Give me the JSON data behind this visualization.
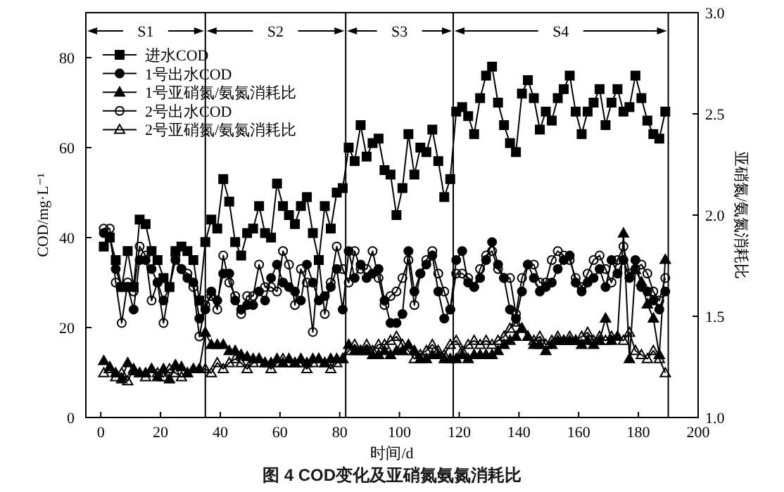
{
  "chart_data": {
    "type": "line",
    "title": "图 4 COD变化及亚硝氮氨氮消耗比",
    "xlabel": "时间/d",
    "ylabel": "COD/mg·L⁻¹",
    "y2label": "亚硝氮/氨氮消耗比",
    "xlim": [
      -5,
      200
    ],
    "xticks": [
      0,
      20,
      40,
      60,
      80,
      100,
      120,
      140,
      160,
      180,
      200
    ],
    "ylim": [
      0,
      90
    ],
    "yticks": [
      0,
      20,
      40,
      60,
      80
    ],
    "y2lim": [
      1.0,
      3.0
    ],
    "y2ticks": [
      {
        "value": 1.0,
        "label": "1.0"
      },
      1.5,
      {
        "value": 2.0,
        "label": "2.0"
      },
      2.5,
      {
        "value": 3.0,
        "label": "3.0"
      }
    ],
    "legend": "top left",
    "grid": false,
    "line_style": "solid",
    "x": [
      1,
      3,
      5,
      7,
      9,
      11,
      13,
      15,
      17,
      19,
      21,
      23,
      25,
      27,
      29,
      31,
      33,
      35,
      37,
      39,
      41,
      43,
      45,
      47,
      49,
      51,
      53,
      55,
      57,
      59,
      61,
      63,
      65,
      67,
      69,
      71,
      73,
      75,
      77,
      79,
      81,
      83,
      85,
      87,
      89,
      91,
      93,
      95,
      97,
      99,
      101,
      103,
      105,
      107,
      109,
      111,
      113,
      115,
      117,
      119,
      121,
      123,
      125,
      127,
      129,
      131,
      133,
      135,
      137,
      139,
      141,
      143,
      145,
      147,
      149,
      151,
      153,
      155,
      157,
      159,
      161,
      163,
      165,
      167,
      169,
      171,
      173,
      175,
      177,
      179,
      181,
      183,
      185,
      187,
      189
    ],
    "ref_lines": [
      {
        "axis": "x",
        "value": 35
      },
      {
        "axis": "x",
        "value": 82
      },
      {
        "axis": "x",
        "value": 118
      },
      {
        "axis": "x",
        "value": 190
      }
    ],
    "annotations": [
      "S1",
      "S2",
      "S3",
      "S4"
    ],
    "series": [
      {
        "name": "进水COD",
        "color": "#000000",
        "marker": "square",
        "values": [
          38,
          40,
          35,
          29,
          37,
          29,
          44,
          43,
          37,
          35,
          31,
          29,
          37,
          38,
          37,
          35,
          26,
          39,
          44,
          42,
          53,
          48,
          39,
          36,
          41,
          42,
          47,
          41,
          40,
          52,
          47,
          45,
          43,
          47,
          49,
          41,
          35,
          47,
          42,
          50,
          51,
          60,
          57,
          65,
          58,
          61,
          62,
          55,
          54,
          45,
          51,
          63,
          54,
          60,
          59,
          64,
          57,
          49,
          53,
          68,
          69,
          67,
          63,
          71,
          76,
          78,
          70,
          65,
          61,
          59,
          72,
          75,
          71,
          64,
          68,
          66,
          71,
          73,
          76,
          68,
          63,
          68,
          70,
          73,
          65,
          70,
          73,
          68,
          69,
          76,
          71,
          66,
          63,
          62,
          68
        ]
      },
      {
        "name": "1号出水COD",
        "color": "#000000",
        "marker": "circle",
        "values": [
          41,
          40,
          33,
          29,
          29,
          24,
          35,
          35,
          33,
          30,
          26,
          29,
          35,
          33,
          31,
          30,
          22,
          24,
          28,
          26,
          32,
          32,
          26,
          24,
          25,
          25,
          28,
          26,
          31,
          34,
          30,
          29,
          28,
          26,
          34,
          30,
          26,
          27,
          29,
          33,
          24,
          37,
          31,
          34,
          31,
          32,
          33,
          26,
          21,
          21,
          23,
          37,
          28,
          32,
          34,
          36,
          28,
          22,
          24,
          35,
          37,
          30,
          29,
          31,
          35,
          39,
          34,
          31,
          24,
          22,
          28,
          34,
          31,
          28,
          29,
          30,
          33,
          35,
          36,
          30,
          28,
          30,
          31,
          33,
          29,
          35,
          32,
          35,
          31,
          35,
          29,
          28,
          26,
          24,
          28
        ]
      },
      {
        "name": "1号亚硝氮/氨氮消耗比",
        "color": "#000000",
        "marker": "triangle",
        "axis": "y2",
        "values": [
          1.28,
          1.25,
          1.22,
          1.19,
          1.27,
          1.23,
          1.22,
          1.22,
          1.24,
          1.2,
          1.24,
          1.19,
          1.26,
          1.25,
          1.22,
          1.24,
          1.24,
          1.42,
          1.36,
          1.36,
          1.36,
          1.33,
          1.33,
          1.31,
          1.3,
          1.29,
          1.29,
          1.27,
          1.27,
          1.29,
          1.27,
          1.29,
          1.27,
          1.29,
          1.27,
          1.29,
          1.29,
          1.27,
          1.29,
          1.29,
          1.29,
          1.36,
          1.33,
          1.33,
          1.33,
          1.31,
          1.31,
          1.33,
          1.31,
          1.33,
          1.33,
          1.36,
          1.33,
          1.29,
          1.29,
          1.31,
          1.31,
          1.29,
          1.29,
          1.29,
          1.31,
          1.29,
          1.31,
          1.31,
          1.31,
          1.31,
          1.33,
          1.36,
          1.38,
          1.4,
          1.44,
          1.4,
          1.36,
          1.36,
          1.33,
          1.36,
          1.38,
          1.38,
          1.38,
          1.38,
          1.36,
          1.38,
          1.36,
          1.38,
          1.49,
          1.38,
          1.4,
          1.91,
          1.29,
          1.73,
          1.67,
          1.56,
          1.49,
          1.31,
          1.78
        ]
      },
      {
        "name": "2号出水COD",
        "color": "#000000",
        "marker": "circle-open",
        "values": [
          42,
          42,
          30,
          21,
          30,
          28,
          38,
          36,
          26,
          30,
          21,
          29,
          36,
          33,
          32,
          29,
          18,
          25,
          27,
          24,
          36,
          30,
          27,
          23,
          27,
          27,
          34,
          29,
          29,
          28,
          37,
          34,
          25,
          33,
          30,
          19,
          35,
          23,
          30,
          38,
          33,
          30,
          37,
          33,
          33,
          37,
          31,
          25,
          27,
          28,
          31,
          35,
          25,
          32,
          35,
          37,
          32,
          28,
          24,
          32,
          32,
          31,
          29,
          33,
          36,
          37,
          33,
          31,
          31,
          23,
          31,
          34,
          34,
          30,
          30,
          35,
          37,
          36,
          35,
          31,
          29,
          32,
          35,
          36,
          33,
          30,
          35,
          38,
          32,
          33,
          34,
          32,
          28,
          26,
          31
        ]
      },
      {
        "name": "2号亚硝氮/氨氮消耗比",
        "color": "#000000",
        "marker": "triangle-open",
        "axis": "y2",
        "values": [
          1.22,
          1.24,
          1.2,
          1.22,
          1.18,
          1.24,
          1.22,
          1.2,
          1.24,
          1.22,
          1.2,
          1.24,
          1.22,
          1.2,
          1.22,
          1.24,
          1.24,
          1.24,
          1.22,
          1.27,
          1.24,
          1.27,
          1.29,
          1.27,
          1.24,
          1.27,
          1.29,
          1.27,
          1.24,
          1.27,
          1.29,
          1.27,
          1.27,
          1.27,
          1.24,
          1.27,
          1.29,
          1.27,
          1.24,
          1.27,
          1.29,
          1.33,
          1.36,
          1.33,
          1.36,
          1.33,
          1.36,
          1.36,
          1.38,
          1.4,
          1.36,
          1.33,
          1.29,
          1.31,
          1.33,
          1.36,
          1.33,
          1.31,
          1.36,
          1.38,
          1.33,
          1.36,
          1.38,
          1.36,
          1.38,
          1.36,
          1.38,
          1.4,
          1.44,
          1.47,
          1.44,
          1.4,
          1.38,
          1.4,
          1.36,
          1.38,
          1.4,
          1.38,
          1.4,
          1.38,
          1.4,
          1.42,
          1.38,
          1.4,
          1.38,
          1.4,
          1.4,
          1.38,
          1.42,
          1.33,
          1.31,
          1.29,
          1.33,
          1.29,
          1.22
        ]
      }
    ]
  }
}
